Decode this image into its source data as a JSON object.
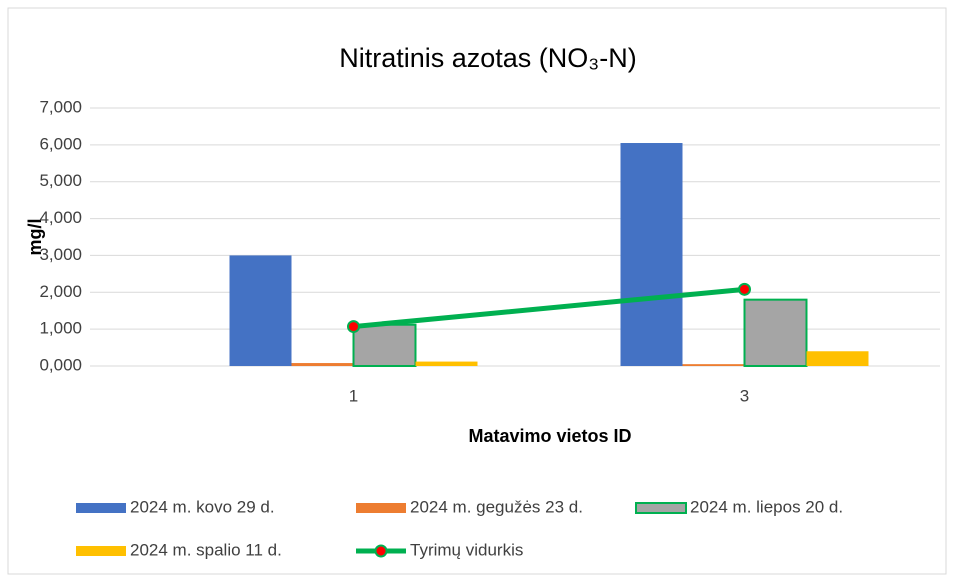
{
  "chart_data": {
    "type": "bar",
    "title": "Nitratinis azotas (NO₃-N)",
    "x_label": "Matavimo vietos ID",
    "y_label": "mg/l",
    "categories": [
      "1",
      "3"
    ],
    "series": [
      {
        "name": "2024 m. kovo 29 d.",
        "type": "bar",
        "color": "#4472c4",
        "values": [
          3.0,
          6.05
        ]
      },
      {
        "name": "2024 m. gegužės 23 d.",
        "type": "bar",
        "color": "#ed7d31",
        "values": [
          0.08,
          0.05
        ]
      },
      {
        "name": "2024 m. liepos 20 d.",
        "type": "bar",
        "color": "#a5a5a5",
        "edgecolor": "#00b050",
        "values": [
          1.12,
          1.8
        ]
      },
      {
        "name": "2024 m. spalio 11 d.",
        "type": "bar",
        "color": "#ffc000",
        "values": [
          0.12,
          0.4
        ]
      },
      {
        "name": "Tyrimų vidurkis",
        "type": "line",
        "color": "#00b050",
        "marker_color": "#ff0000",
        "values": [
          1.07,
          2.08
        ]
      }
    ],
    "ylim": [
      0,
      7
    ],
    "yticks": [
      {
        "value": 0,
        "label": "0,000"
      },
      {
        "value": 1,
        "label": "1,000"
      },
      {
        "value": 2,
        "label": "2,000"
      },
      {
        "value": 3,
        "label": "3,000"
      },
      {
        "value": 4,
        "label": "4,000"
      },
      {
        "value": 5,
        "label": "5,000"
      },
      {
        "value": 6,
        "label": "6,000"
      },
      {
        "value": 7,
        "label": "7,000"
      }
    ],
    "grid": true,
    "legend": "bottom"
  }
}
